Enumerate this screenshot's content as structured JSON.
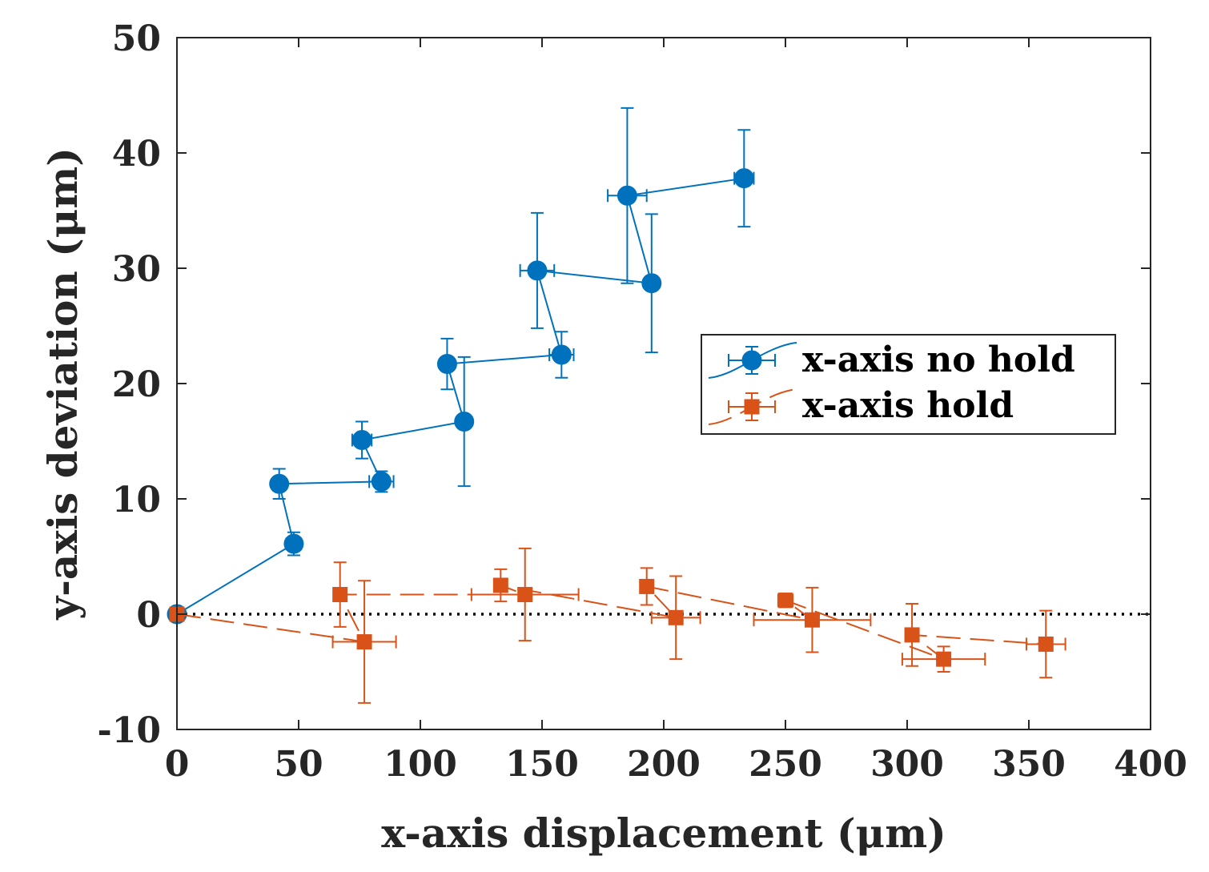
{
  "chart_data": {
    "type": "scatter",
    "xlabel": "x-axis displacement (μm)",
    "ylabel": "y-axis deviation (μm)",
    "xlim": [
      0,
      400
    ],
    "ylim": [
      -10,
      50
    ],
    "xticks": [
      0,
      50,
      100,
      150,
      200,
      250,
      300,
      350,
      400
    ],
    "yticks": [
      -10,
      0,
      10,
      20,
      30,
      40,
      50
    ],
    "xtick_labels": [
      "0",
      "50",
      "100",
      "150",
      "200",
      "250",
      "300",
      "350",
      "400"
    ],
    "ytick_labels": [
      "-10",
      "0",
      "10",
      "20",
      "30",
      "40",
      "50"
    ],
    "grid": false,
    "legend_position": "right-middle",
    "reference_line": {
      "y": 0,
      "style": "dotted",
      "color": "#000000"
    },
    "series": [
      {
        "name": "x-axis no hold",
        "color": "#0072BD",
        "marker": "circle",
        "line_style": "solid",
        "points": [
          {
            "x": 0,
            "y": 0,
            "xerr": 0,
            "yerr_low": 0,
            "yerr_high": 0
          },
          {
            "x": 48,
            "y": 6.1,
            "xerr": 3,
            "yerr_low": 1.0,
            "yerr_high": 1.0
          },
          {
            "x": 42,
            "y": 11.3,
            "xerr": 2,
            "yerr_low": 1.3,
            "yerr_high": 1.3
          },
          {
            "x": 84,
            "y": 11.5,
            "xerr": 5,
            "yerr_low": 0.9,
            "yerr_high": 0.9
          },
          {
            "x": 76,
            "y": 15.1,
            "xerr": 4,
            "yerr_low": 1.6,
            "yerr_high": 1.6
          },
          {
            "x": 118,
            "y": 16.7,
            "xerr": 0,
            "yerr_low": 5.6,
            "yerr_high": 5.6
          },
          {
            "x": 111,
            "y": 21.7,
            "xerr": 0,
            "yerr_low": 2.2,
            "yerr_high": 2.2
          },
          {
            "x": 158,
            "y": 22.5,
            "xerr": 5,
            "yerr_low": 2.0,
            "yerr_high": 2.0
          },
          {
            "x": 148,
            "y": 29.8,
            "xerr": 7,
            "yerr_low": 5.0,
            "yerr_high": 5.0
          },
          {
            "x": 195,
            "y": 28.7,
            "xerr": 2,
            "yerr_low": 6.0,
            "yerr_high": 6.0
          },
          {
            "x": 185,
            "y": 36.3,
            "xerr": 8,
            "yerr_low": 7.6,
            "yerr_high": 7.6
          },
          {
            "x": 233,
            "y": 37.8,
            "xerr": 4,
            "yerr_low": 4.2,
            "yerr_high": 4.2
          }
        ]
      },
      {
        "name": "x-axis hold",
        "color": "#D95319",
        "marker": "square",
        "line_style": "dashed",
        "points": [
          {
            "x": 0,
            "y": 0,
            "xerr": 0,
            "yerr_low": 0,
            "yerr_high": 0
          },
          {
            "x": 77,
            "y": -2.4,
            "xerr": 13,
            "yerr_low": 5.3,
            "yerr_high": 5.3
          },
          {
            "x": 67,
            "y": 1.7,
            "xerr": 2,
            "yerr_low": 2.8,
            "yerr_high": 2.8
          },
          {
            "x": 143,
            "y": 1.7,
            "xerr": 22,
            "yerr_low": 4.0,
            "yerr_high": 4.0
          },
          {
            "x": 133,
            "y": 2.5,
            "xerr": 2,
            "yerr_low": 1.4,
            "yerr_high": 1.4
          },
          {
            "x": 205,
            "y": -0.3,
            "xerr": 10,
            "yerr_low": 3.6,
            "yerr_high": 3.6
          },
          {
            "x": 193,
            "y": 2.4,
            "xerr": 2,
            "yerr_low": 1.6,
            "yerr_high": 1.6
          },
          {
            "x": 261,
            "y": -0.5,
            "xerr": 24,
            "yerr_low": 2.8,
            "yerr_high": 2.8
          },
          {
            "x": 250,
            "y": 1.2,
            "xerr": 3,
            "yerr_low": 0.6,
            "yerr_high": 0.6
          },
          {
            "x": 315,
            "y": -3.9,
            "xerr": 17,
            "yerr_low": 1.1,
            "yerr_high": 1.1
          },
          {
            "x": 302,
            "y": -1.8,
            "xerr": 2,
            "yerr_low": 2.7,
            "yerr_high": 2.7
          },
          {
            "x": 357,
            "y": -2.6,
            "xerr": 8,
            "yerr_low": 2.9,
            "yerr_high": 2.9
          }
        ]
      }
    ]
  }
}
